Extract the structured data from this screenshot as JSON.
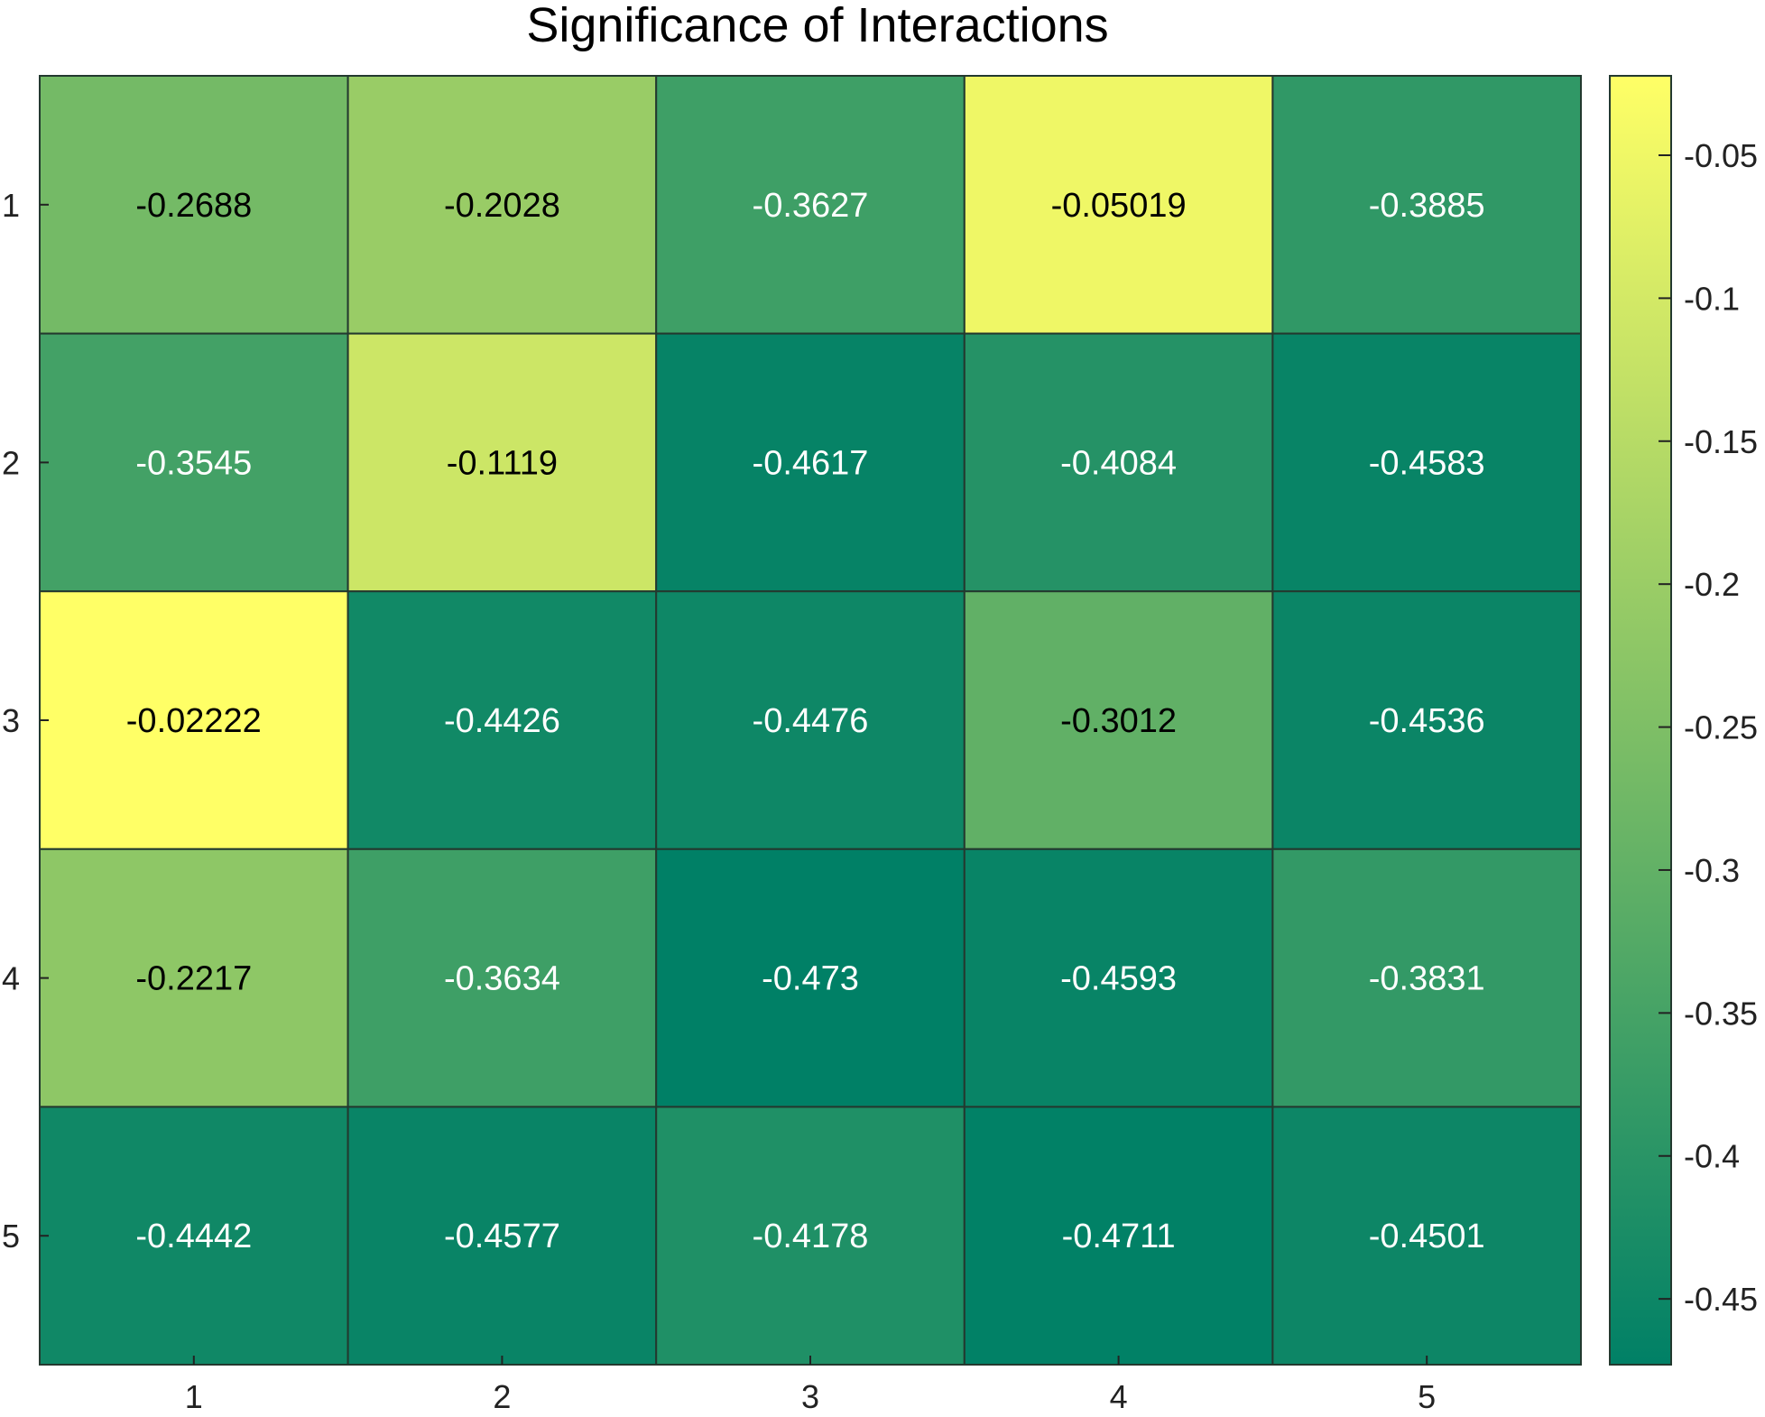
{
  "chart_data": {
    "type": "heatmap",
    "title": "Significance of Interactions",
    "xlabel": "",
    "ylabel": "",
    "x_categories": [
      "1",
      "2",
      "3",
      "4",
      "5"
    ],
    "y_categories": [
      "1",
      "2",
      "3",
      "4",
      "5"
    ],
    "values": [
      [
        -0.2688,
        -0.2028,
        -0.3627,
        -0.05019,
        -0.3885
      ],
      [
        -0.3545,
        -0.1119,
        -0.4617,
        -0.4084,
        -0.4583
      ],
      [
        -0.02222,
        -0.4426,
        -0.4476,
        -0.3012,
        -0.4536
      ],
      [
        -0.2217,
        -0.3634,
        -0.473,
        -0.4593,
        -0.3831
      ],
      [
        -0.4442,
        -0.4577,
        -0.4178,
        -0.4711,
        -0.4501
      ]
    ],
    "labels": [
      [
        "-0.2688",
        "-0.2028",
        "-0.3627",
        "-0.05019",
        "-0.3885"
      ],
      [
        "-0.3545",
        "-0.1119",
        "-0.4617",
        "-0.4084",
        "-0.4583"
      ],
      [
        "-0.02222",
        "-0.4426",
        "-0.4476",
        "-0.3012",
        "-0.4536"
      ],
      [
        "-0.2217",
        "-0.3634",
        "-0.473",
        "-0.4593",
        "-0.3831"
      ],
      [
        "-0.4442",
        "-0.4577",
        "-0.4178",
        "-0.4711",
        "-0.4501"
      ]
    ],
    "colorbar": {
      "range": [
        -0.473,
        -0.02222
      ],
      "ticks": [
        -0.05,
        -0.1,
        -0.15,
        -0.2,
        -0.25,
        -0.3,
        -0.35,
        -0.4,
        -0.45
      ],
      "tick_labels": [
        "-0.05",
        "-0.1",
        "-0.15",
        "-0.2",
        "-0.25",
        "-0.3",
        "-0.35",
        "-0.4",
        "-0.45"
      ],
      "placement": "right"
    },
    "colormap": {
      "name": "summer",
      "low": "#008066",
      "high": "#ffff66"
    },
    "grid": false
  }
}
